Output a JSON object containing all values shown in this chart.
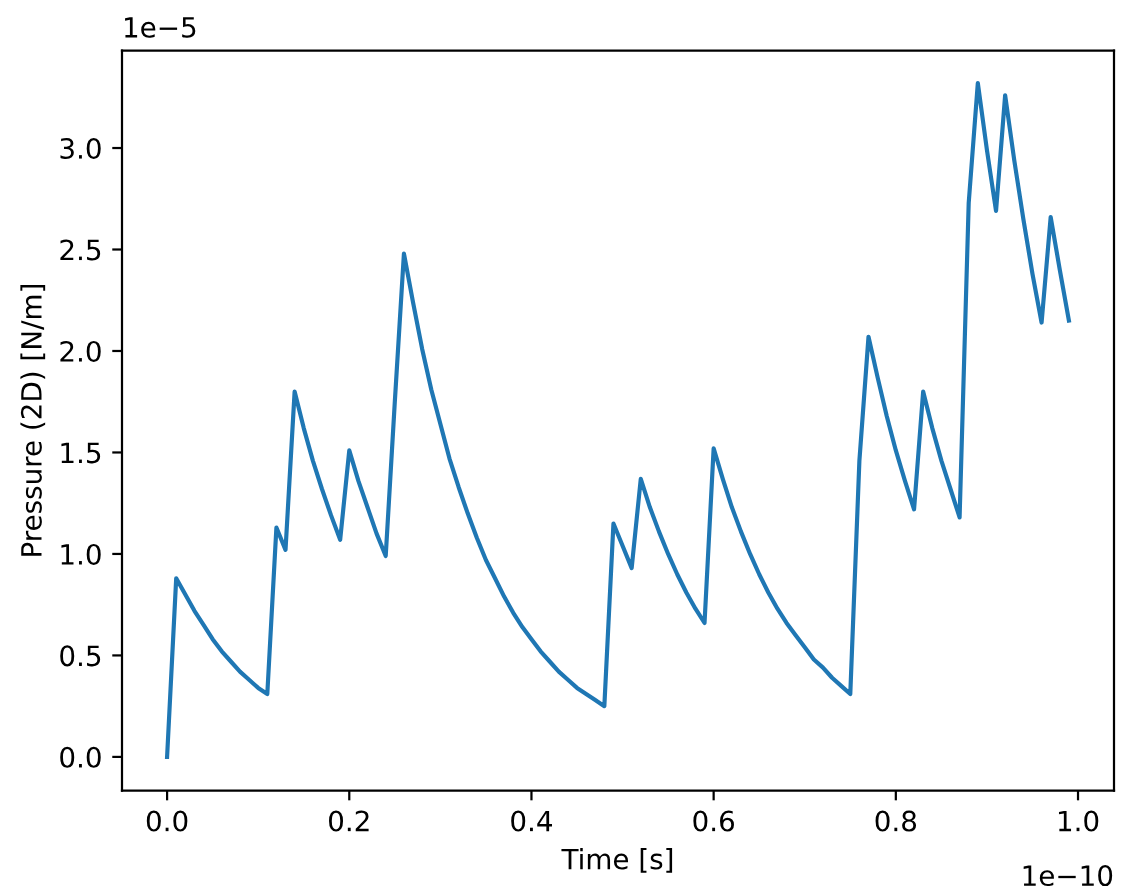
{
  "chart_data": {
    "type": "line",
    "xlabel": "Time [s]",
    "ylabel": "Pressure (2D) [N/m]",
    "annotations": [
      "1e−5",
      "1e−10"
    ],
    "x": [
      0,
      0.01,
      0.02,
      0.03,
      0.04,
      0.05,
      0.06,
      0.07,
      0.08,
      0.09,
      0.1,
      0.11,
      0.12,
      0.13,
      0.14,
      0.15,
      0.16,
      0.17,
      0.18,
      0.19,
      0.2,
      0.21,
      0.22,
      0.23,
      0.24,
      0.25,
      0.26,
      0.27,
      0.28,
      0.29,
      0.3,
      0.31,
      0.32,
      0.33,
      0.34,
      0.35,
      0.36,
      0.37,
      0.38,
      0.39,
      0.4,
      0.41,
      0.42,
      0.43,
      0.44,
      0.45,
      0.46,
      0.47,
      0.48,
      0.49,
      0.5,
      0.51,
      0.52,
      0.53,
      0.54,
      0.55,
      0.56,
      0.57,
      0.58,
      0.59,
      0.6,
      0.61,
      0.62,
      0.63,
      0.64,
      0.65,
      0.66,
      0.67,
      0.68,
      0.69,
      0.7,
      0.71,
      0.72,
      0.73,
      0.74,
      0.75,
      0.76,
      0.77,
      0.78,
      0.79,
      0.8,
      0.81,
      0.82,
      0.83,
      0.84,
      0.85,
      0.86,
      0.87,
      0.88,
      0.89,
      0.9,
      0.91,
      0.92,
      0.93,
      0.94,
      0.95,
      0.96,
      0.97,
      0.98,
      0.99
    ],
    "series": [
      {
        "color": "#1f77b4",
        "values": [
          0,
          0.88,
          0.8,
          0.72,
          0.65,
          0.58,
          0.52,
          0.47,
          0.42,
          0.38,
          0.34,
          0.31,
          1.13,
          1.02,
          1.8,
          1.62,
          1.46,
          1.32,
          1.19,
          1.07,
          1.51,
          1.36,
          1.23,
          1.1,
          0.99,
          1.75,
          2.48,
          2.24,
          2.01,
          1.81,
          1.64,
          1.47,
          1.33,
          1.2,
          1.08,
          0.97,
          0.88,
          0.79,
          0.71,
          0.64,
          0.58,
          0.52,
          0.47,
          0.42,
          0.38,
          0.34,
          0.31,
          0.28,
          0.25,
          1.15,
          1.04,
          0.93,
          1.37,
          1.23,
          1.11,
          1.0,
          0.9,
          0.81,
          0.73,
          0.66,
          1.52,
          1.37,
          1.23,
          1.11,
          1.0,
          0.9,
          0.81,
          0.73,
          0.66,
          0.6,
          0.54,
          0.48,
          0.44,
          0.39,
          0.35,
          0.31,
          1.46,
          2.07,
          1.87,
          1.68,
          1.51,
          1.36,
          1.22,
          1.8,
          1.62,
          1.46,
          1.32,
          1.18,
          2.73,
          3.32,
          2.99,
          2.69,
          3.26,
          2.94,
          2.65,
          2.38,
          2.14,
          2.66,
          2.4,
          2.15
        ]
      }
    ],
    "xlim": [
      -0.0495,
      1.0395
    ],
    "ylim": [
      -0.166,
      3.48
    ],
    "xticks": [
      {
        "value": 0,
        "label": "0.0"
      },
      0.2,
      0.4,
      0.6,
      0.8,
      {
        "value": 1,
        "label": "1.0"
      }
    ],
    "yticks": [
      {
        "value": 0,
        "label": "0.0"
      },
      0.5,
      {
        "value": 1,
        "label": "1.0"
      },
      1.5,
      {
        "value": 2,
        "label": "2.0"
      },
      2.5,
      {
        "value": 3,
        "label": "3.0"
      }
    ],
    "grid": false,
    "legend": false
  }
}
